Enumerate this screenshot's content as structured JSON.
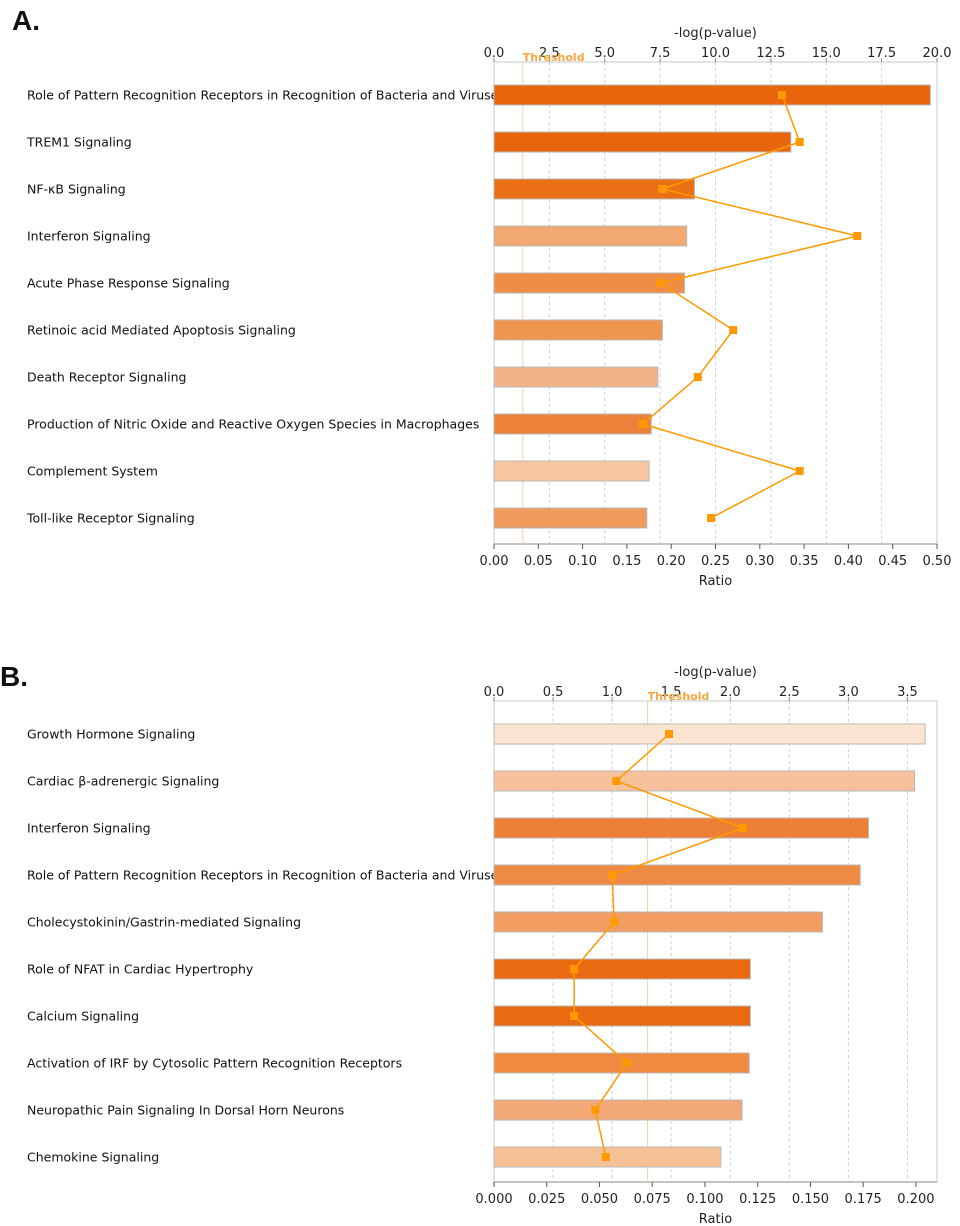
{
  "chart_data": [
    {
      "panel": "A.",
      "type": "bar",
      "top_axis": {
        "label": "-log(p-value)",
        "lim": [
          0,
          20
        ],
        "ticks": [
          "0.0",
          "2.5",
          "5.0",
          "7.5",
          "10.0",
          "12.5",
          "15.0",
          "17.5",
          "20.0"
        ]
      },
      "bottom_axis": {
        "label": "Ratio",
        "lim": [
          0,
          0.5
        ],
        "ticks": [
          "0.00",
          "0.05",
          "0.10",
          "0.15",
          "0.20",
          "0.25",
          "0.30",
          "0.35",
          "0.40",
          "0.45",
          "0.50"
        ]
      },
      "threshold": {
        "label": "Threshold",
        "value": 1.3
      },
      "grid": true,
      "categories": [
        "Role of Pattern Recognition Receptors in Recognition of Bacteria and Viruses",
        "TREM1 Signaling",
        "NF-κB Signaling",
        "Interferon Signaling",
        "Acute Phase Response Signaling",
        "Retinoic acid Mediated Apoptosis Signaling",
        "Death Receptor Signaling",
        "Production of Nitric Oxide and Reactive Oxygen Species in Macrophages",
        "Complement System",
        "Toll-like Receptor Signaling"
      ],
      "neg_log_p": [
        19.7,
        13.4,
        9.05,
        8.7,
        8.6,
        7.6,
        7.4,
        7.1,
        7.0,
        6.9
      ],
      "ratio": [
        0.325,
        0.345,
        0.19,
        0.41,
        0.188,
        0.27,
        0.23,
        0.168,
        0.345,
        0.245
      ],
      "colors": [
        "#e8650c",
        "#e8650c",
        "#eb7015",
        "#f2a873",
        "#ef8c45",
        "#f0954f",
        "#f4b386",
        "#ee823a",
        "#f6c6a1",
        "#f19a5d"
      ],
      "marker_color": "#ff9900"
    },
    {
      "panel": "B.",
      "type": "bar",
      "top_axis": {
        "label": "-log(p-value)",
        "lim": [
          0,
          3.75
        ],
        "ticks": [
          "0.0",
          "0.5",
          "1.0",
          "1.5",
          "2.0",
          "2.5",
          "3.0",
          "3.5"
        ]
      },
      "bottom_axis": {
        "label": "Ratio",
        "lim": [
          0,
          0.21
        ],
        "ticks": [
          "0.000",
          "0.025",
          "0.050",
          "0.075",
          "0.100",
          "0.125",
          "0.150",
          "0.175",
          "0.200"
        ]
      },
      "threshold": {
        "label": "Threshold",
        "value": 1.3
      },
      "grid": true,
      "categories": [
        "Growth Hormone Signaling",
        "Cardiac β-adrenergic Signaling",
        "Interferon Signaling",
        "Role of Pattern Recognition Receptors in Recognition of Bacteria and Viruses",
        "Cholecystokinin/Gastrin-mediated Signaling",
        "Role of NFAT in Cardiac Hypertrophy",
        "Calcium Signaling",
        "Activation of IRF by Cytosolic Pattern Recognition Receptors",
        "Neuropathic Pain Signaling In Dorsal Horn Neurons",
        "Chemokine Signaling"
      ],
      "neg_log_p": [
        3.65,
        3.56,
        3.17,
        3.1,
        2.78,
        2.17,
        2.17,
        2.16,
        2.1,
        1.92
      ],
      "ratio": [
        0.083,
        0.058,
        0.118,
        0.056,
        0.057,
        0.038,
        0.038,
        0.063,
        0.048,
        0.053
      ],
      "colors": [
        "#fbe3d2",
        "#f6c19b",
        "#ee8035",
        "#ef8a42",
        "#f29e62",
        "#e96a10",
        "#e96a10",
        "#ef8a40",
        "#f3a878",
        "#f6c197"
      ],
      "marker_color": "#ff9900"
    }
  ]
}
